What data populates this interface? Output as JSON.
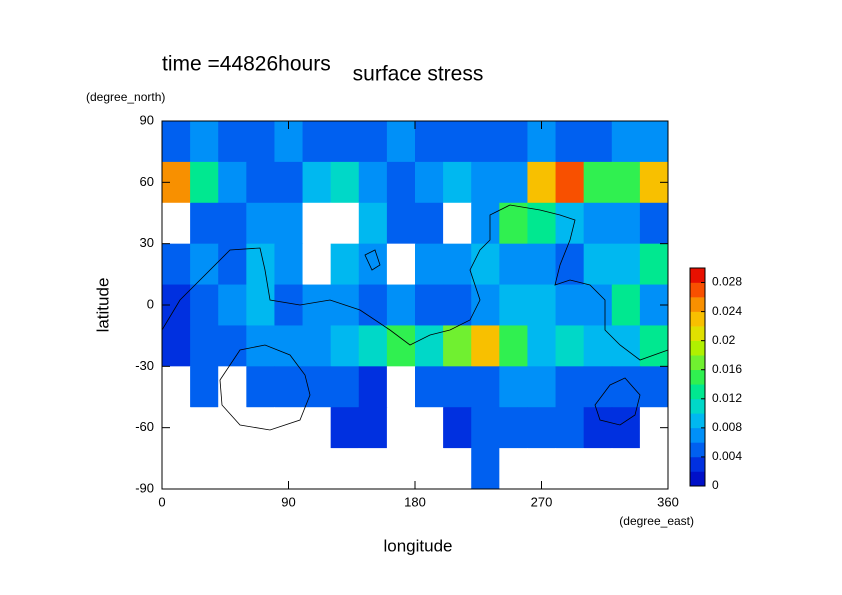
{
  "chart_data": {
    "type": "heatmap",
    "title": "surface stress",
    "subtitle": "time =44826hours",
    "x_label": "longitude",
    "x_units": "(degree_east)",
    "y_label": "latitude",
    "y_units": "(degree_north)",
    "x": [
      10,
      30,
      50,
      70,
      90,
      110,
      130,
      150,
      170,
      190,
      210,
      230,
      250,
      270,
      290,
      310,
      330,
      350
    ],
    "y": [
      80,
      60,
      40,
      20,
      0,
      -20,
      -40,
      -60,
      -80
    ],
    "values": [
      [
        0.004,
        0.006,
        0.004,
        0.004,
        0.006,
        0.004,
        0.004,
        0.004,
        0.006,
        0.004,
        0.004,
        0.004,
        0.004,
        0.006,
        0.004,
        0.004,
        0.006,
        0.006
      ],
      [
        0.024,
        0.012,
        0.006,
        0.004,
        0.004,
        0.008,
        0.01,
        0.006,
        0.004,
        0.006,
        0.008,
        0.006,
        0.006,
        0.022,
        0.026,
        0.014,
        0.014,
        0.022
      ],
      [
        0,
        0.004,
        0.004,
        0.006,
        0.006,
        0,
        0,
        0.008,
        0.004,
        0.004,
        0,
        0.006,
        0.014,
        0.012,
        0.008,
        0.006,
        0.006,
        0.004
      ],
      [
        0.004,
        0.006,
        0.004,
        0.008,
        0.006,
        0,
        0.008,
        0.006,
        0,
        0.006,
        0.006,
        0.008,
        0.006,
        0.006,
        0.004,
        0.008,
        0.008,
        0.012
      ],
      [
        0.002,
        0.004,
        0.006,
        0.008,
        0.004,
        0.006,
        0.006,
        0.004,
        0.006,
        0.004,
        0.004,
        0.006,
        0.008,
        0.008,
        0.006,
        0.006,
        0.012,
        0.006
      ],
      [
        0.002,
        0.004,
        0.004,
        0.006,
        0.006,
        0.006,
        0.008,
        0.01,
        0.014,
        0.01,
        0.016,
        0.022,
        0.014,
        0.008,
        0.01,
        0.008,
        0.008,
        0.012
      ],
      [
        0,
        0.004,
        0,
        0.004,
        0.004,
        0.004,
        0.004,
        0.002,
        0,
        0.004,
        0.004,
        0.004,
        0.006,
        0.006,
        0.004,
        0.004,
        0.004,
        0.004
      ],
      [
        0,
        0,
        0,
        0,
        0,
        0,
        0.002,
        0.002,
        0,
        0,
        0.002,
        0.004,
        0.004,
        0.004,
        0.004,
        0.002,
        0.002,
        0
      ],
      [
        0,
        0,
        0,
        0,
        0,
        0,
        0,
        0,
        0,
        0,
        0,
        0.004,
        0,
        0,
        0,
        0,
        0,
        0
      ]
    ],
    "xlim": [
      0,
      360
    ],
    "xticks": [
      0,
      90,
      180,
      270,
      360
    ],
    "ylim": [
      -90,
      90
    ],
    "yticks": [
      90,
      60,
      30,
      0,
      -30,
      -60,
      -90
    ],
    "levels": [
      0,
      0.002,
      0.004,
      0.006,
      0.008,
      0.01,
      0.012,
      0.014,
      0.016,
      0.018,
      0.02,
      0.022,
      0.024,
      0.026,
      0.028,
      0.03
    ],
    "colors": [
      "#0010c8",
      "#0030e0",
      "#0060f0",
      "#0090f8",
      "#00b8f0",
      "#00d8c8",
      "#00e890",
      "#30f050",
      "#70f030",
      "#b0f000",
      "#e0e000",
      "#f8c000",
      "#f89000",
      "#f85000",
      "#e81000"
    ],
    "colorbar_lim": [
      0,
      0.03
    ],
    "colorbar_ticks": [
      0,
      0.004,
      0.008,
      0.012,
      0.016,
      0.02,
      0.024,
      0.028
    ]
  }
}
